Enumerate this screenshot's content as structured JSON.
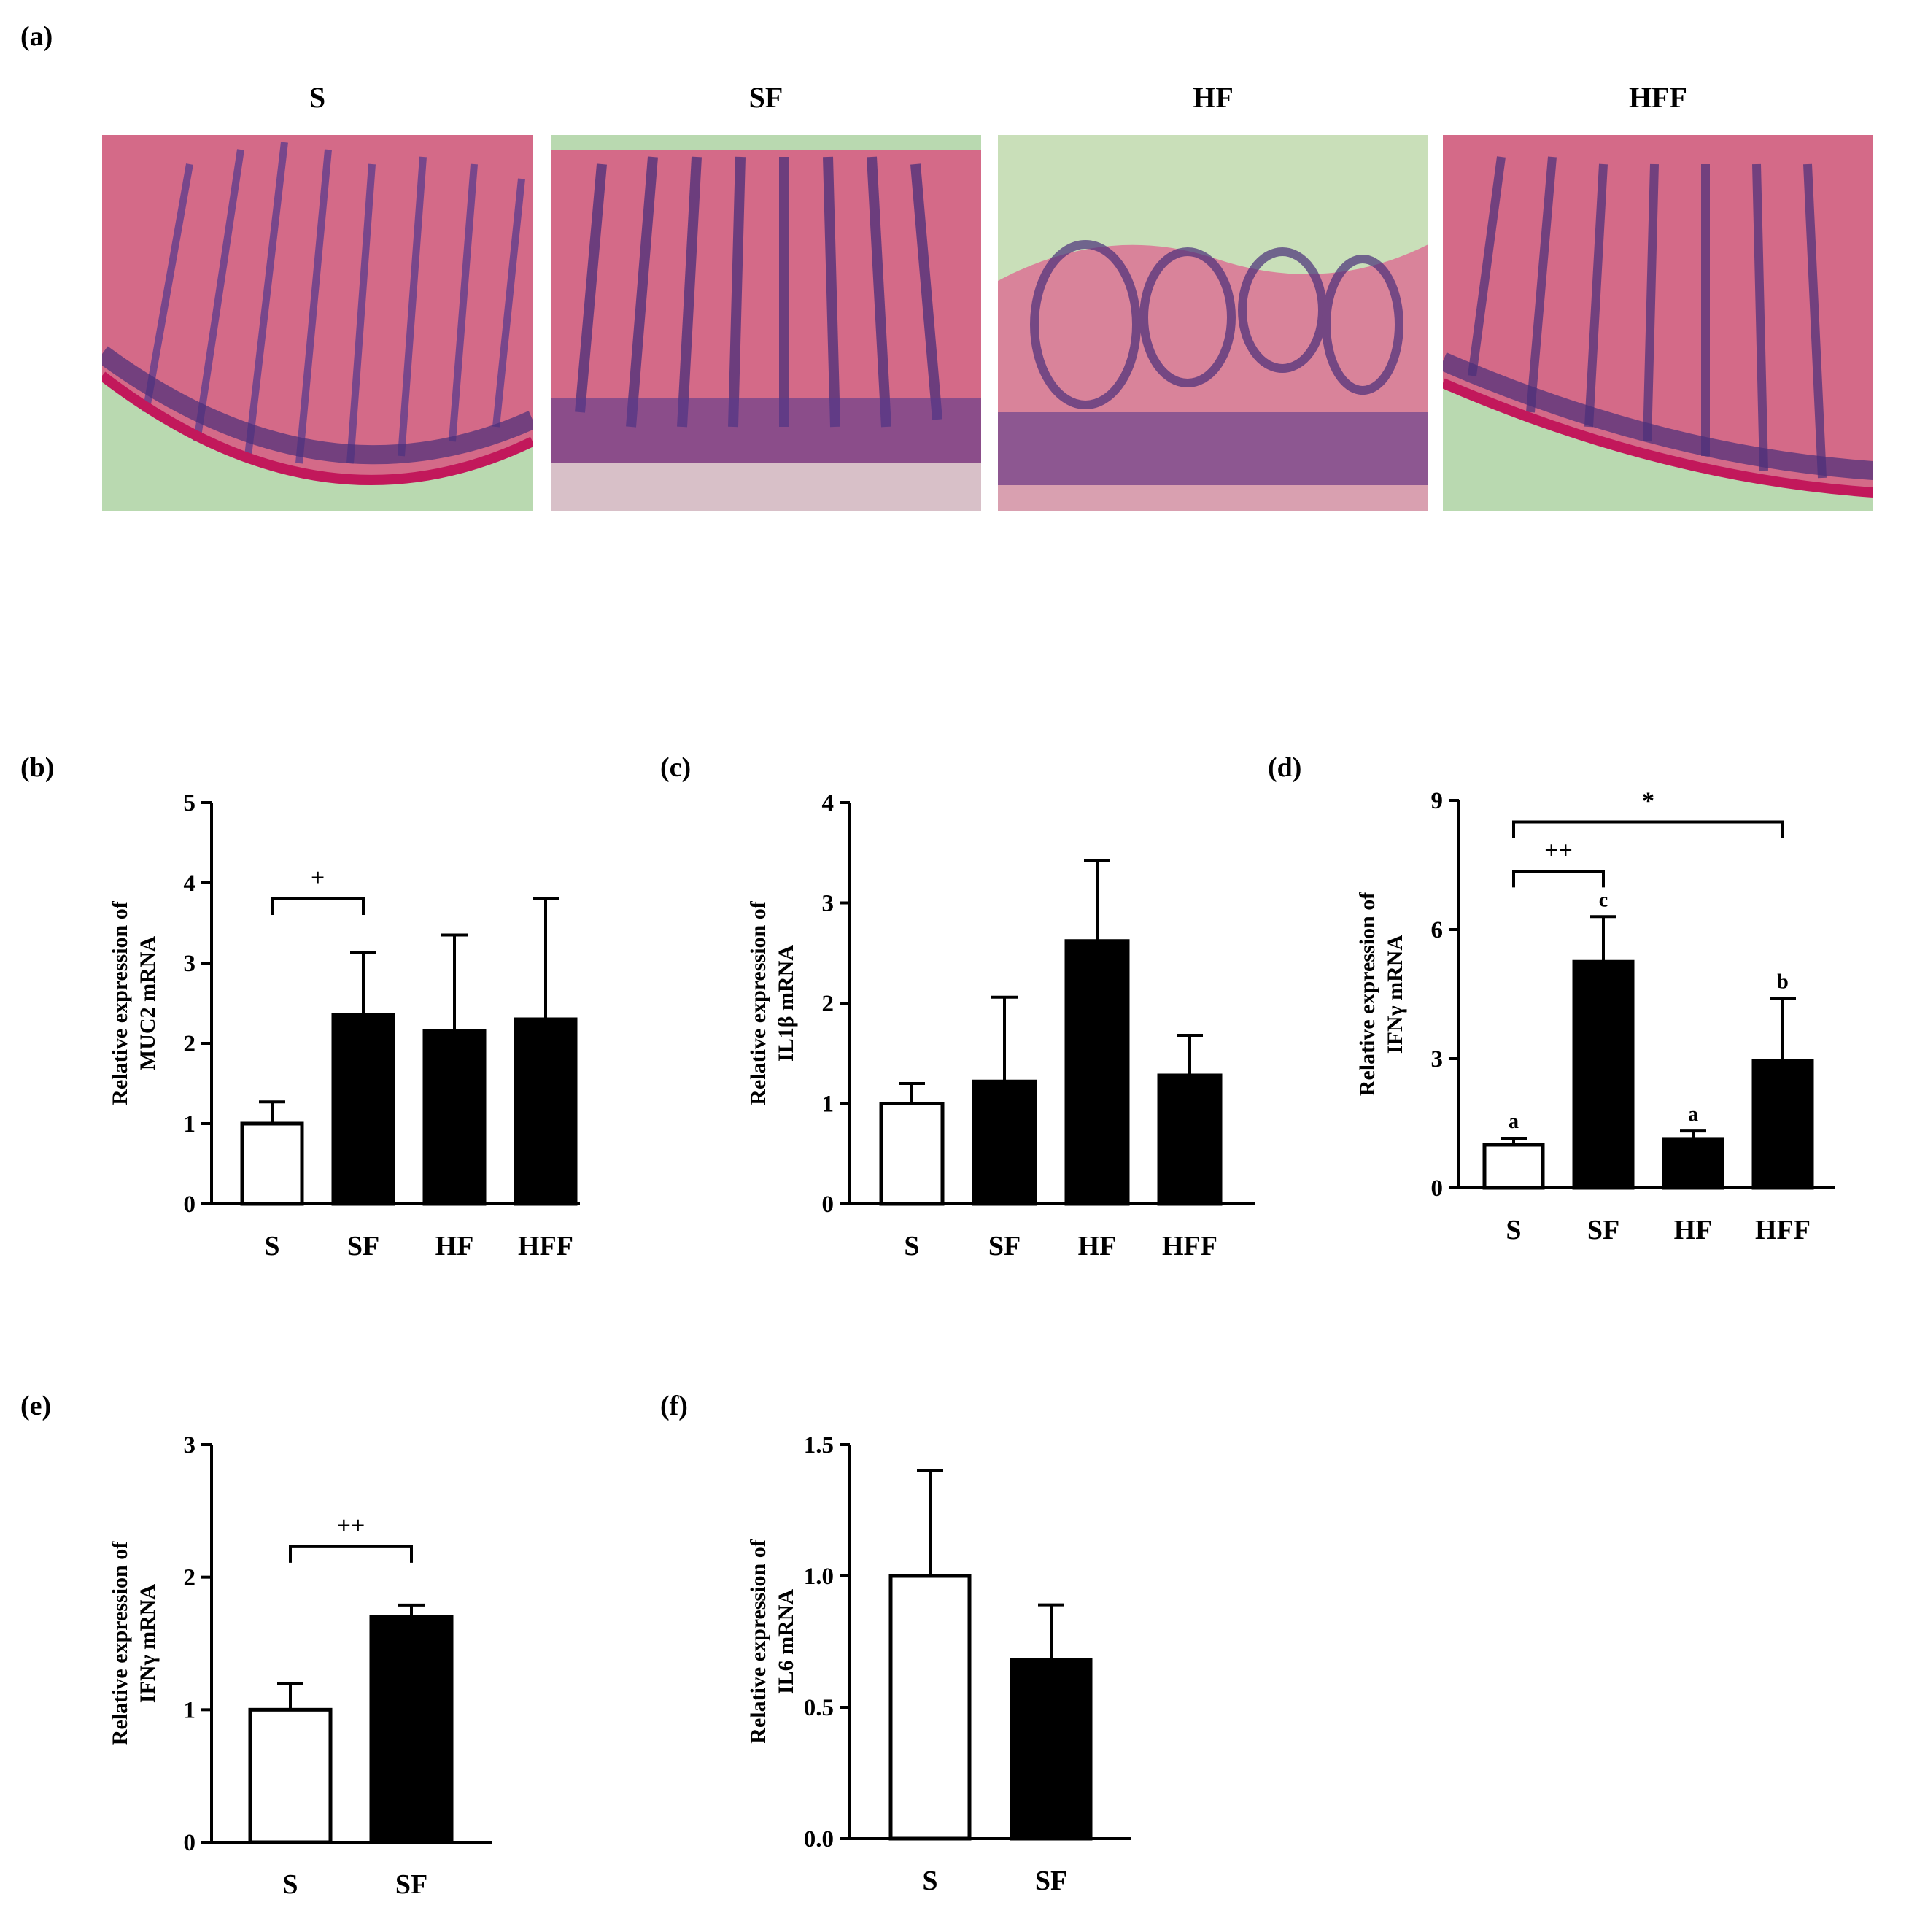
{
  "panel_a": {
    "label": "(a)",
    "images": [
      {
        "title": "S",
        "stain": "H&E intestinal villi"
      },
      {
        "title": "SF",
        "stain": "H&E intestinal villi"
      },
      {
        "title": "HF",
        "stain": "H&E intestinal villi"
      },
      {
        "title": "HFF",
        "stain": "H&E intestinal villi"
      }
    ]
  },
  "colors": {
    "control_fill": "#ffffff",
    "treatment_fill": "#000000",
    "stroke": "#000000"
  },
  "chart_data": [
    {
      "id": "b",
      "label": "(b)",
      "type": "bar",
      "ylabel_line1": "Relative expression of",
      "ylabel_line2": "MUC2 mRNA",
      "categories": [
        "S",
        "SF",
        "HF",
        "HFF"
      ],
      "values": [
        1.0,
        2.35,
        2.15,
        2.3
      ],
      "errors": [
        0.27,
        0.78,
        1.2,
        1.5
      ],
      "fills": [
        "white",
        "black",
        "black",
        "black"
      ],
      "ylim": [
        0,
        5
      ],
      "yticks": [
        0,
        1,
        2,
        3,
        4,
        5
      ],
      "ytick_labels": [
        "0",
        "1",
        "2",
        "3",
        "4",
        "5"
      ],
      "brackets": [
        {
          "from": 0,
          "to": 1,
          "at": 3.8,
          "text": "+"
        }
      ],
      "letters": []
    },
    {
      "id": "c",
      "label": "(c)",
      "type": "bar",
      "ylabel_line1": "Relative expression of",
      "ylabel_line2": "IL1β mRNA",
      "categories": [
        "S",
        "SF",
        "HF",
        "HFF"
      ],
      "values": [
        1.0,
        1.22,
        2.62,
        1.28
      ],
      "errors": [
        0.2,
        0.84,
        0.8,
        0.4
      ],
      "fills": [
        "white",
        "black",
        "black",
        "black"
      ],
      "ylim": [
        0,
        4
      ],
      "yticks": [
        0,
        1,
        2,
        3,
        4
      ],
      "ytick_labels": [
        "0",
        "1",
        "2",
        "3",
        "4"
      ],
      "brackets": [],
      "letters": []
    },
    {
      "id": "d",
      "label": "(d)",
      "type": "bar",
      "ylabel_line1": "Relative expression of",
      "ylabel_line2": "IFNγ mRNA",
      "categories": [
        "S",
        "SF",
        "HF",
        "HFF"
      ],
      "values": [
        1.0,
        5.25,
        1.12,
        2.95
      ],
      "errors": [
        0.15,
        1.05,
        0.2,
        1.45
      ],
      "fills": [
        "white",
        "black",
        "black",
        "black"
      ],
      "ylim": [
        0,
        9
      ],
      "yticks": [
        0,
        3,
        6,
        9
      ],
      "ytick_labels": [
        "0",
        "3",
        "6",
        "9"
      ],
      "brackets": [
        {
          "from": 0,
          "to": 1,
          "at": 7.35,
          "text": "++"
        },
        {
          "from": 0,
          "to": 3,
          "at": 8.5,
          "text": "*"
        }
      ],
      "letters": [
        "a",
        "c",
        "a",
        "b"
      ]
    },
    {
      "id": "e",
      "label": "(e)",
      "type": "bar",
      "ylabel_line1": "Relative expression of",
      "ylabel_line2": "IFNγ mRNA",
      "categories": [
        "S",
        "SF"
      ],
      "values": [
        1.0,
        1.7
      ],
      "errors": [
        0.2,
        0.09
      ],
      "fills": [
        "white",
        "black"
      ],
      "ylim": [
        0,
        3
      ],
      "yticks": [
        0,
        1,
        2,
        3
      ],
      "ytick_labels": [
        "0",
        "1",
        "2",
        "3"
      ],
      "brackets": [
        {
          "from": 0,
          "to": 1,
          "at": 2.23,
          "text": "++"
        }
      ],
      "letters": []
    },
    {
      "id": "f",
      "label": "(f)",
      "type": "bar",
      "ylabel_line1": "Relative expression of",
      "ylabel_line2": "IL6 mRNA",
      "categories": [
        "S",
        "SF"
      ],
      "values": [
        1.0,
        0.68
      ],
      "errors": [
        0.4,
        0.21
      ],
      "fills": [
        "white",
        "black"
      ],
      "ylim": [
        0,
        1.5
      ],
      "yticks": [
        0,
        0.5,
        1.0,
        1.5
      ],
      "ytick_labels": [
        "0.0",
        "0.5",
        "1.0",
        "1.5"
      ],
      "brackets": [],
      "letters": []
    }
  ]
}
